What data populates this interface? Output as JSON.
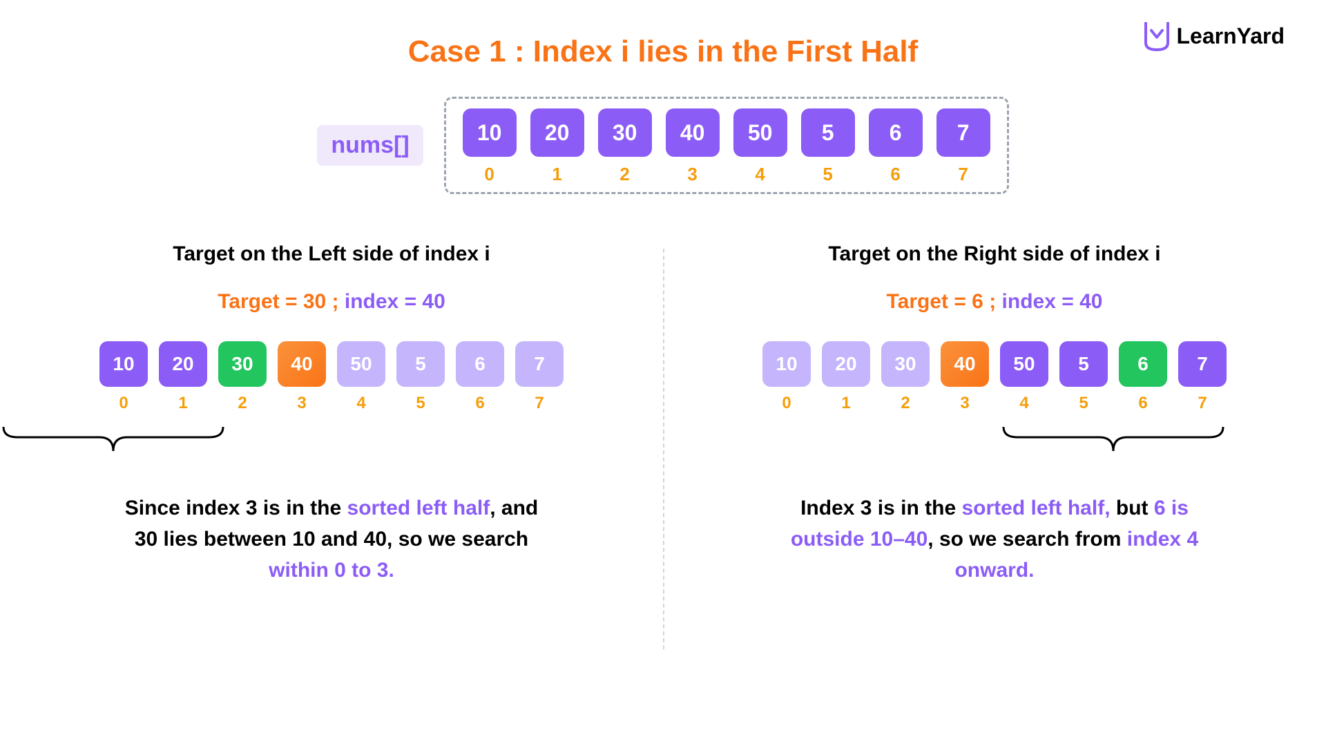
{
  "logo": {
    "text": "LearnYard",
    "icon_color": "#8b5cf6"
  },
  "title": {
    "text": "Case 1 : Index i lies in the First Half",
    "color": "#f97316"
  },
  "main_array": {
    "label": "nums[]",
    "label_bg": "#f0e9fc",
    "label_color": "#8b5cf6",
    "values": [
      "10",
      "20",
      "30",
      "40",
      "50",
      "5",
      "6",
      "7"
    ],
    "indices": [
      "0",
      "1",
      "2",
      "3",
      "4",
      "5",
      "6",
      "7"
    ],
    "cell_color": "#8b5cf6",
    "index_color": "#f59e0b",
    "border_color": "#9ca3af"
  },
  "left": {
    "subtitle": "Target on the Left side of index i",
    "target_prefix": "Target = 30 ; ",
    "target_suffix": "index = 40",
    "target_prefix_color": "#f97316",
    "target_suffix_color": "#8b5cf6",
    "cells": [
      {
        "value": "10",
        "type": "purple"
      },
      {
        "value": "20",
        "type": "purple"
      },
      {
        "value": "30",
        "type": "green"
      },
      {
        "value": "40",
        "type": "orange"
      },
      {
        "value": "50",
        "type": "light"
      },
      {
        "value": "5",
        "type": "light"
      },
      {
        "value": "6",
        "type": "light"
      },
      {
        "value": "7",
        "type": "light"
      }
    ],
    "indices": [
      "0",
      "1",
      "2",
      "3",
      "4",
      "5",
      "6",
      "7"
    ],
    "brace": {
      "start": 0,
      "end": 3
    },
    "explanation": {
      "parts": [
        {
          "text": "Since index 3 is in the ",
          "color": "black"
        },
        {
          "text": "sorted left half",
          "color": "purple"
        },
        {
          "text": ", and 30 lies between 10 and 40, so we search ",
          "color": "black"
        },
        {
          "text": "within 0 to 3.",
          "color": "purple"
        }
      ]
    }
  },
  "right": {
    "subtitle": "Target on the Right side of index i",
    "target_prefix": "Target = 6 ; ",
    "target_suffix": "index = 40",
    "target_prefix_color": "#f97316",
    "target_suffix_color": "#8b5cf6",
    "cells": [
      {
        "value": "10",
        "type": "light"
      },
      {
        "value": "20",
        "type": "light"
      },
      {
        "value": "30",
        "type": "light"
      },
      {
        "value": "40",
        "type": "orange"
      },
      {
        "value": "50",
        "type": "purple"
      },
      {
        "value": "5",
        "type": "purple"
      },
      {
        "value": "6",
        "type": "green"
      },
      {
        "value": "7",
        "type": "purple"
      }
    ],
    "indices": [
      "0",
      "1",
      "2",
      "3",
      "4",
      "5",
      "6",
      "7"
    ],
    "brace": {
      "start": 4,
      "end": 7
    },
    "explanation": {
      "parts": [
        {
          "text": "Index 3 is in the ",
          "color": "black"
        },
        {
          "text": "sorted left half,",
          "color": "purple"
        },
        {
          "text": " but ",
          "color": "black"
        },
        {
          "text": "6 is outside 10–40",
          "color": "purple"
        },
        {
          "text": ", so we search from ",
          "color": "black"
        },
        {
          "text": "index 4 onward.",
          "color": "purple"
        }
      ]
    }
  },
  "colors": {
    "purple": "#8b5cf6",
    "light_purple": "#c4b5fd",
    "green": "#22c55e",
    "orange": "#f97316",
    "black": "#000000",
    "index_orange": "#f59e0b"
  }
}
